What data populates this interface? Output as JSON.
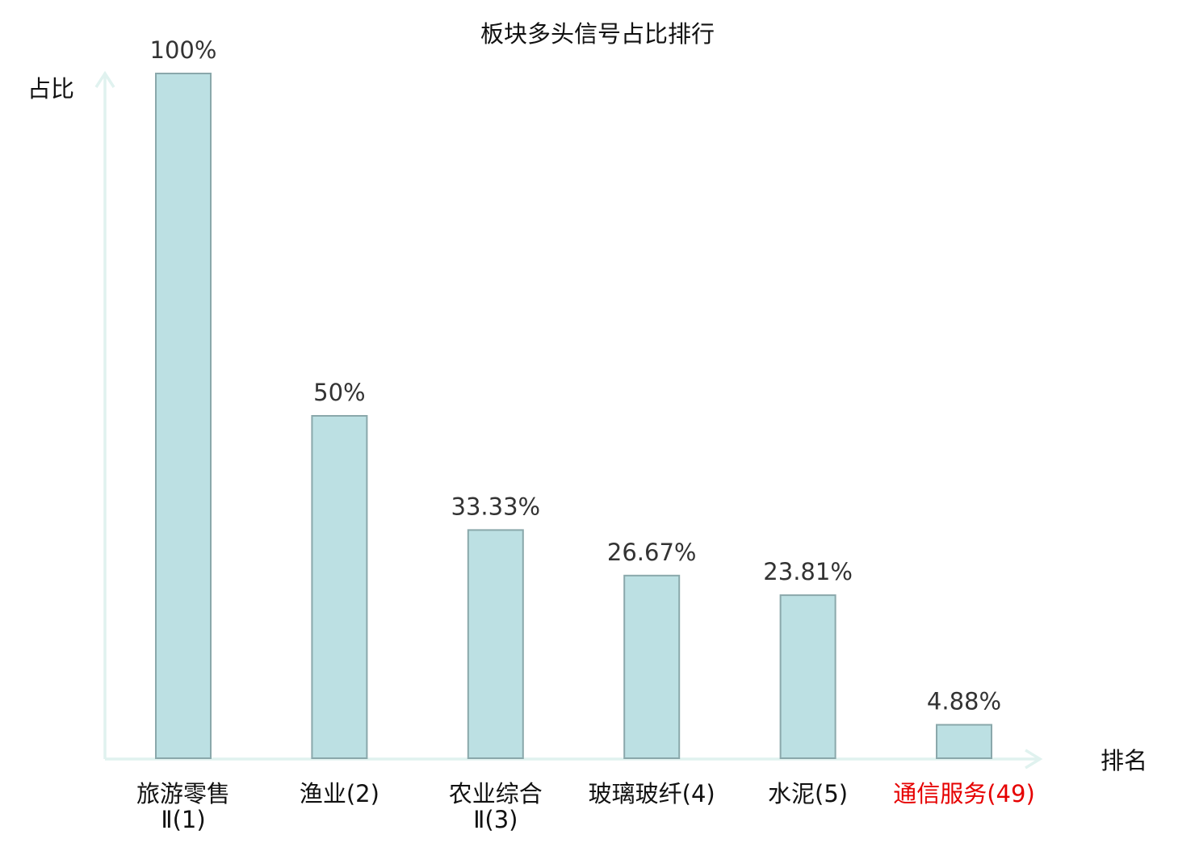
{
  "chart_data": {
    "type": "bar",
    "title": "板块多头信号占比排行",
    "ylabel": "占比",
    "xlabel": "排名",
    "ylim": [
      0,
      100
    ],
    "grid": false,
    "categories": [
      {
        "lines": [
          "旅游零售",
          "Ⅱ(1)"
        ],
        "highlight": false
      },
      {
        "lines": [
          "渔业(2)"
        ],
        "highlight": false
      },
      {
        "lines": [
          "农业综合",
          "Ⅱ(3)"
        ],
        "highlight": false
      },
      {
        "lines": [
          "玻璃玻纤(4)"
        ],
        "highlight": false
      },
      {
        "lines": [
          "水泥(5)"
        ],
        "highlight": false
      },
      {
        "lines": [
          "通信服务(49)"
        ],
        "highlight": true
      }
    ],
    "values": [
      100,
      50,
      33.33,
      26.67,
      23.81,
      4.88
    ],
    "value_labels": [
      "100%",
      "50%",
      "33.33%",
      "26.67%",
      "23.81%",
      "4.88%"
    ],
    "colors": {
      "bar_fill": "#bce0e3",
      "bar_stroke": "#8aa8ab",
      "axis": "#e0f2ef",
      "text": "#333333",
      "highlight_text": "#e60000"
    }
  }
}
